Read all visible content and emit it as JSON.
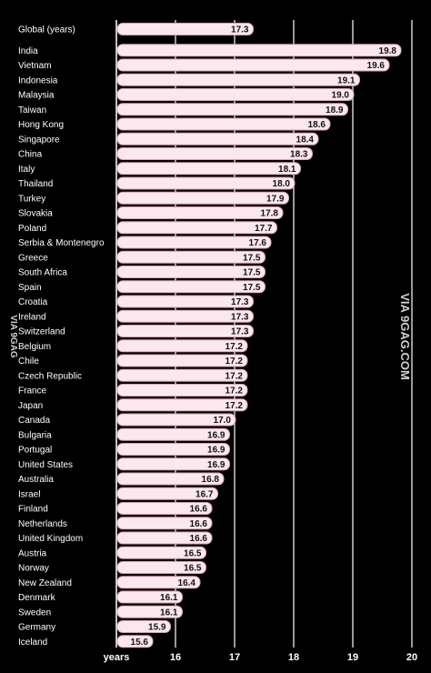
{
  "watermark": {
    "side_text": "VIA 9GAG.COM",
    "left_text": "VIA 9GAG"
  },
  "chart_data": {
    "type": "bar",
    "orientation": "horizontal",
    "xlabel": "years",
    "xlim": [
      15,
      20
    ],
    "xticks": [
      16,
      17,
      18,
      19,
      20
    ],
    "colors": {
      "bar_fill": "#fbe8ee",
      "bar_stroke": "#d8a0b0",
      "background": "#000000",
      "gridline": "#ffffff"
    },
    "categories": [
      "Global (years)",
      "India",
      "Vietnam",
      "Indonesia",
      "Malaysia",
      "Taiwan",
      "Hong Kong",
      "Singapore",
      "China",
      "Italy",
      "Thailand",
      "Turkey",
      "Slovakia",
      "Poland",
      "Serbia & Montenegro",
      "Greece",
      "South Africa",
      "Spain",
      "Croatia",
      "Ireland",
      "Switzerland",
      "Belgium",
      "Chile",
      "Czech Republic",
      "France",
      "Japan",
      "Canada",
      "Bulgaria",
      "Portugal",
      "United States",
      "Australia",
      "Israel",
      "Finland",
      "Netherlands",
      "United Kingdom",
      "Austria",
      "Norway",
      "New Zealand",
      "Denmark",
      "Sweden",
      "Germany",
      "Iceland"
    ],
    "labels": [
      "17.3",
      "19.8",
      "19.6",
      "19.1",
      "19.0",
      "18.9",
      "18.6",
      "18.4",
      "18.3",
      "18.1",
      "18.0",
      "17.9",
      "17.8",
      "17.7",
      "17.6",
      "17.5",
      "17.5",
      "17.5",
      "17.3",
      "17.3",
      "17.3",
      "17.2",
      "17.2",
      "17.2",
      "17.2",
      "17.2",
      "17.0",
      "16.9",
      "16.9",
      "16.9",
      "16.8",
      "16.7",
      "16.6",
      "16.6",
      "16.6",
      "16.5",
      "16.5",
      "16.4",
      "16.1",
      "16.1",
      "15.9",
      "15.6"
    ],
    "values": [
      17.3,
      19.8,
      19.6,
      19.1,
      19.0,
      18.9,
      18.6,
      18.4,
      18.3,
      18.1,
      18.0,
      17.9,
      17.8,
      17.7,
      17.6,
      17.5,
      17.5,
      17.5,
      17.3,
      17.3,
      17.3,
      17.2,
      17.2,
      17.2,
      17.2,
      17.2,
      17.0,
      16.9,
      16.9,
      16.9,
      16.8,
      16.7,
      16.6,
      16.6,
      16.6,
      16.5,
      16.5,
      16.4,
      16.1,
      16.1,
      15.9,
      15.6
    ]
  }
}
